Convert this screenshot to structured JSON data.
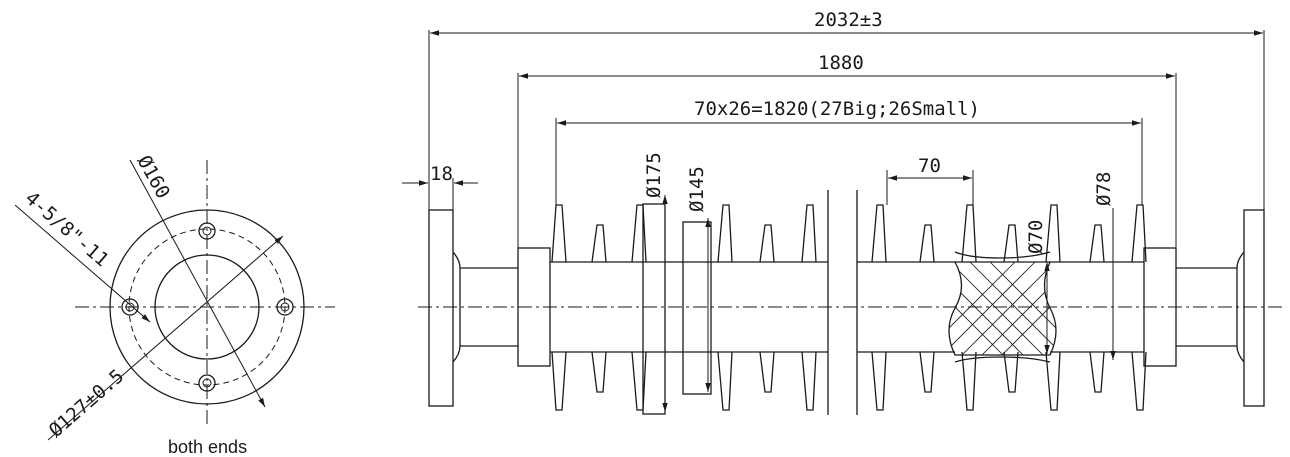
{
  "flange_view": {
    "dia_outer": "Ø160",
    "bolt_spec": "4-5/8\"-11",
    "pcd": "Ø127±0.5",
    "caption": "both ends"
  },
  "side_view": {
    "overall_length": "2032±3",
    "insulation_length": "1880",
    "shed_pitch": "70x26=1820(27Big;26Small)",
    "flange_thickness": "18",
    "big_shed_dia": "Ø175",
    "small_shed_dia": "Ø145",
    "shed_spacing": "70",
    "core_dia": "Ø70",
    "sheath_dia": "Ø78"
  }
}
